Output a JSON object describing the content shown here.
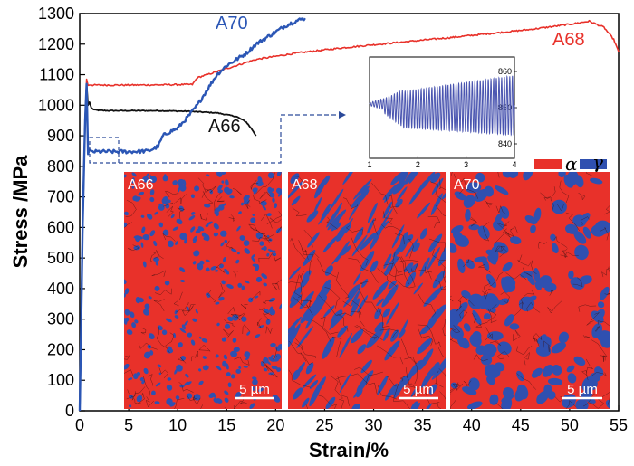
{
  "colors": {
    "alpha": "#e8312a",
    "gamma": "#2f50b0",
    "a66": "#111111",
    "a68": "#e8312a",
    "a70": "#2b56b5",
    "inset": "#4a55b0"
  },
  "chart_data": {
    "type": "line",
    "xlabel": "Strain/%",
    "ylabel": "Stress /MPa",
    "xlim": [
      0,
      55
    ],
    "ylim": [
      0,
      1300
    ],
    "x_ticks": [
      "0",
      "5",
      "10",
      "15",
      "20",
      "25",
      "30",
      "35",
      "40",
      "45",
      "50",
      "55"
    ],
    "y_ticks": [
      "0",
      "100",
      "200",
      "300",
      "400",
      "500",
      "600",
      "700",
      "800",
      "900",
      "1000",
      "1100",
      "1200",
      "1300"
    ],
    "series": [
      {
        "name": "A66",
        "color": "#111111",
        "x": [
          0,
          0.3,
          0.55,
          0.7,
          0.85,
          1.0,
          1.2,
          1.5,
          2.0,
          3.0,
          5.0,
          8.0,
          11.0,
          14.0,
          16.0,
          17.0,
          17.6,
          18.0
        ],
        "y": [
          0,
          600,
          950,
          1070,
          1000,
          1010,
          990,
          985,
          983,
          982,
          982,
          982,
          980,
          975,
          963,
          945,
          920,
          900
        ]
      },
      {
        "name": "A68",
        "color": "#e8312a",
        "x": [
          0,
          0.3,
          0.55,
          0.7,
          0.85,
          1.0,
          1.2,
          3.0,
          6.0,
          9.0,
          11.5,
          12.0,
          15.0,
          18.0,
          22.0,
          26.0,
          30.0,
          34.0,
          38.0,
          42.0,
          46.0,
          50.0,
          52.0,
          53.5,
          54.5,
          55.0
        ],
        "y": [
          0,
          600,
          950,
          1085,
          1065,
          1066,
          1066,
          1066,
          1066,
          1067,
          1068,
          1090,
          1120,
          1150,
          1170,
          1185,
          1198,
          1210,
          1222,
          1235,
          1248,
          1265,
          1275,
          1255,
          1215,
          1175
        ]
      },
      {
        "name": "A70",
        "color": "#2b56b5",
        "x": [
          0,
          0.3,
          0.55,
          0.7,
          0.85,
          1.0,
          1.3,
          3.0,
          5.0,
          7.0,
          8.0,
          8.5,
          9.0,
          10.0,
          11.0,
          12.0,
          13.0,
          14.0,
          15.0,
          16.0,
          17.0,
          18.0,
          19.0,
          20.0,
          21.0,
          22.0,
          23.0
        ],
        "y": [
          0,
          600,
          950,
          1070,
          840,
          855,
          848,
          848,
          848,
          850,
          865,
          900,
          910,
          925,
          960,
          1000,
          1050,
          1100,
          1130,
          1150,
          1170,
          1200,
          1220,
          1240,
          1260,
          1275,
          1285
        ]
      }
    ],
    "inset": {
      "x_ticks": [
        "1",
        "2",
        "3",
        "4"
      ],
      "y_ticks": [
        "840",
        "850",
        "860"
      ],
      "xlim": [
        1,
        4
      ],
      "ylim": [
        836,
        864
      ]
    },
    "micrographs": [
      {
        "label": "A66",
        "scale": "5 µm"
      },
      {
        "label": "A68",
        "scale": "5 µm"
      },
      {
        "label": "A70",
        "scale": "5 µm"
      }
    ],
    "legend": [
      {
        "symbol": "α",
        "color": "#e8312a"
      },
      {
        "symbol": "γ",
        "color": "#2f50b0"
      }
    ]
  }
}
